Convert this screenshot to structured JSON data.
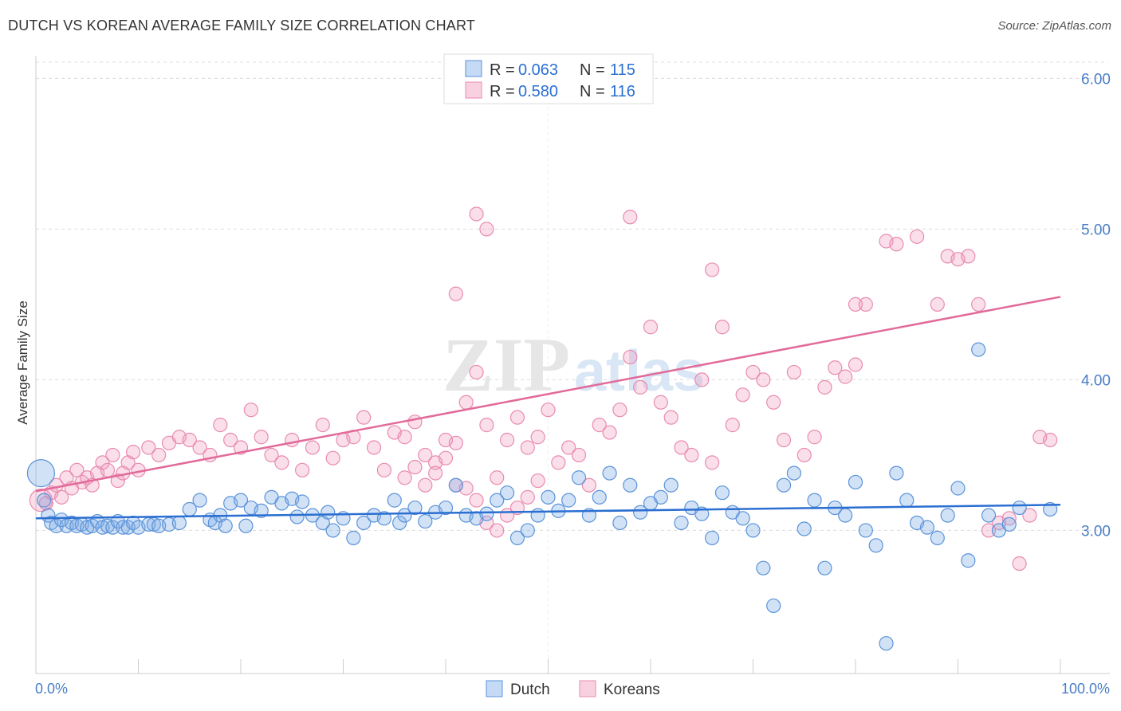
{
  "title": "DUTCH VS KOREAN AVERAGE FAMILY SIZE CORRELATION CHART",
  "source": "Source: ZipAtlas.com",
  "watermark": "ZIPatlas",
  "colors": {
    "dutch_fill": "rgba(126,172,230,0.35)",
    "dutch_stroke": "#5b93d9",
    "dutch_line": "#2a6fd1",
    "korean_fill": "rgba(240,150,185,0.3)",
    "korean_stroke": "#e98bb0",
    "korean_line": "#e26a9a",
    "tick_blue": "#4a7ec7"
  },
  "legend": {
    "dutch": {
      "r_label": "R =",
      "r_value": "0.063",
      "n_label": "N =",
      "n_value": "115"
    },
    "korean": {
      "r_label": "R =",
      "r_value": "0.580",
      "n_label": "N =",
      "n_value": "116"
    }
  },
  "chart_data": {
    "type": "scatter",
    "title": "DUTCH VS KOREAN AVERAGE FAMILY SIZE CORRELATION CHART",
    "xlabel": "",
    "ylabel": "Average Family Size",
    "xlim": [
      0,
      100
    ],
    "ylim": [
      2.05,
      6.15
    ],
    "x_tick_labels": [
      "0.0%",
      "100.0%"
    ],
    "y_ticks": [
      3.0,
      4.0,
      5.0,
      6.0
    ],
    "y_tick_labels": [
      "3.00",
      "4.00",
      "5.00",
      "6.00"
    ],
    "grid": true,
    "legend_position": "top-center",
    "series": [
      {
        "name": "Dutch",
        "trend": {
          "x": [
            0,
            100
          ],
          "y": [
            3.08,
            3.17
          ]
        },
        "points": [
          [
            0.5,
            3.38
          ],
          [
            0.8,
            3.2
          ],
          [
            1.2,
            3.1
          ],
          [
            1.5,
            3.05
          ],
          [
            2,
            3.03
          ],
          [
            2.5,
            3.07
          ],
          [
            3,
            3.03
          ],
          [
            3.5,
            3.05
          ],
          [
            4,
            3.03
          ],
          [
            4.5,
            3.04
          ],
          [
            5,
            3.02
          ],
          [
            5.5,
            3.03
          ],
          [
            6,
            3.06
          ],
          [
            6.5,
            3.02
          ],
          [
            7,
            3.03
          ],
          [
            7.5,
            3.02
          ],
          [
            8,
            3.06
          ],
          [
            8.5,
            3.02
          ],
          [
            9,
            3.02
          ],
          [
            9.5,
            3.05
          ],
          [
            10,
            3.02
          ],
          [
            11,
            3.04
          ],
          [
            11.5,
            3.04
          ],
          [
            12,
            3.03
          ],
          [
            13,
            3.04
          ],
          [
            14,
            3.05
          ],
          [
            15,
            3.14
          ],
          [
            16,
            3.2
          ],
          [
            17,
            3.07
          ],
          [
            17.5,
            3.05
          ],
          [
            18,
            3.1
          ],
          [
            18.5,
            3.03
          ],
          [
            19,
            3.18
          ],
          [
            20,
            3.2
          ],
          [
            20.5,
            3.03
          ],
          [
            21,
            3.15
          ],
          [
            22,
            3.13
          ],
          [
            23,
            3.22
          ],
          [
            24,
            3.18
          ],
          [
            25,
            3.21
          ],
          [
            25.5,
            3.09
          ],
          [
            26,
            3.19
          ],
          [
            27,
            3.1
          ],
          [
            28,
            3.05
          ],
          [
            28.5,
            3.12
          ],
          [
            29,
            3.0
          ],
          [
            30,
            3.08
          ],
          [
            31,
            2.95
          ],
          [
            32,
            3.05
          ],
          [
            33,
            3.1
          ],
          [
            34,
            3.08
          ],
          [
            35,
            3.2
          ],
          [
            35.5,
            3.05
          ],
          [
            36,
            3.1
          ],
          [
            37,
            3.15
          ],
          [
            38,
            3.06
          ],
          [
            39,
            3.12
          ],
          [
            40,
            3.15
          ],
          [
            41,
            3.3
          ],
          [
            42,
            3.1
          ],
          [
            43,
            3.08
          ],
          [
            44,
            3.11
          ],
          [
            45,
            3.2
          ],
          [
            46,
            3.25
          ],
          [
            47,
            2.95
          ],
          [
            48,
            3.0
          ],
          [
            49,
            3.1
          ],
          [
            50,
            3.22
          ],
          [
            51,
            3.13
          ],
          [
            52,
            3.2
          ],
          [
            53,
            3.35
          ],
          [
            54,
            3.1
          ],
          [
            55,
            3.22
          ],
          [
            56,
            3.38
          ],
          [
            57,
            3.05
          ],
          [
            58,
            3.3
          ],
          [
            59,
            3.12
          ],
          [
            60,
            3.18
          ],
          [
            61,
            3.22
          ],
          [
            62,
            3.3
          ],
          [
            63,
            3.05
          ],
          [
            64,
            3.15
          ],
          [
            65,
            3.11
          ],
          [
            66,
            2.95
          ],
          [
            67,
            3.25
          ],
          [
            68,
            3.12
          ],
          [
            69,
            3.08
          ],
          [
            70,
            3.0
          ],
          [
            71,
            2.75
          ],
          [
            72,
            2.5
          ],
          [
            73,
            3.3
          ],
          [
            74,
            3.38
          ],
          [
            75,
            3.01
          ],
          [
            76,
            3.2
          ],
          [
            77,
            2.75
          ],
          [
            78,
            3.15
          ],
          [
            79,
            3.1
          ],
          [
            80,
            3.32
          ],
          [
            81,
            3.0
          ],
          [
            82,
            2.9
          ],
          [
            83,
            2.25
          ],
          [
            84,
            3.38
          ],
          [
            85,
            3.2
          ],
          [
            86,
            3.05
          ],
          [
            87,
            3.02
          ],
          [
            88,
            2.95
          ],
          [
            89,
            3.1
          ],
          [
            90,
            3.28
          ],
          [
            91,
            2.8
          ],
          [
            92,
            4.2
          ],
          [
            93,
            3.1
          ],
          [
            94,
            3.0
          ],
          [
            95,
            3.04
          ],
          [
            96,
            3.15
          ],
          [
            99,
            3.14
          ]
        ]
      },
      {
        "name": "Koreans",
        "trend": {
          "x": [
            0,
            100
          ],
          "y": [
            3.26,
            4.55
          ]
        },
        "points": [
          [
            0.5,
            3.2
          ],
          [
            1,
            3.18
          ],
          [
            1.5,
            3.25
          ],
          [
            2,
            3.3
          ],
          [
            2.5,
            3.22
          ],
          [
            3,
            3.35
          ],
          [
            3.5,
            3.28
          ],
          [
            4,
            3.4
          ],
          [
            4.5,
            3.32
          ],
          [
            5,
            3.35
          ],
          [
            5.5,
            3.3
          ],
          [
            6,
            3.38
          ],
          [
            6.5,
            3.45
          ],
          [
            7,
            3.4
          ],
          [
            7.5,
            3.5
          ],
          [
            8,
            3.33
          ],
          [
            8.5,
            3.38
          ],
          [
            9,
            3.45
          ],
          [
            9.5,
            3.52
          ],
          [
            10,
            3.4
          ],
          [
            11,
            3.55
          ],
          [
            12,
            3.5
          ],
          [
            13,
            3.58
          ],
          [
            14,
            3.62
          ],
          [
            15,
            3.6
          ],
          [
            16,
            3.55
          ],
          [
            17,
            3.5
          ],
          [
            18,
            3.7
          ],
          [
            19,
            3.6
          ],
          [
            20,
            3.55
          ],
          [
            21,
            3.8
          ],
          [
            22,
            3.62
          ],
          [
            23,
            3.5
          ],
          [
            24,
            3.45
          ],
          [
            25,
            3.6
          ],
          [
            26,
            3.4
          ],
          [
            27,
            3.55
          ],
          [
            28,
            3.7
          ],
          [
            29,
            3.48
          ],
          [
            30,
            3.6
          ],
          [
            31,
            3.62
          ],
          [
            32,
            3.75
          ],
          [
            33,
            3.55
          ],
          [
            34,
            3.4
          ],
          [
            35,
            3.65
          ],
          [
            36,
            3.62
          ],
          [
            37,
            3.72
          ],
          [
            38,
            3.5
          ],
          [
            39,
            3.45
          ],
          [
            40,
            3.6
          ],
          [
            41,
            3.58
          ],
          [
            42,
            3.85
          ],
          [
            43,
            4.05
          ],
          [
            44,
            3.7
          ],
          [
            45,
            3.35
          ],
          [
            46,
            3.6
          ],
          [
            47,
            3.75
          ],
          [
            48,
            3.55
          ],
          [
            49,
            3.62
          ],
          [
            50,
            3.8
          ],
          [
            51,
            3.45
          ],
          [
            52,
            3.55
          ],
          [
            53,
            3.5
          ],
          [
            54,
            3.3
          ],
          [
            55,
            3.7
          ],
          [
            56,
            3.65
          ],
          [
            57,
            3.8
          ],
          [
            58,
            4.15
          ],
          [
            59,
            3.95
          ],
          [
            60,
            4.35
          ],
          [
            61,
            3.85
          ],
          [
            62,
            3.75
          ],
          [
            63,
            3.55
          ],
          [
            64,
            3.5
          ],
          [
            65,
            4.0
          ],
          [
            66,
            3.45
          ],
          [
            67,
            4.35
          ],
          [
            68,
            3.7
          ],
          [
            69,
            3.9
          ],
          [
            70,
            4.05
          ],
          [
            71,
            4.0
          ],
          [
            72,
            3.85
          ],
          [
            73,
            3.6
          ],
          [
            74,
            4.05
          ],
          [
            75,
            3.5
          ],
          [
            76,
            3.62
          ],
          [
            77,
            3.95
          ],
          [
            78,
            4.08
          ],
          [
            79,
            4.02
          ],
          [
            80,
            4.1
          ],
          [
            41,
            4.57
          ],
          [
            43,
            5.1
          ],
          [
            44,
            5.0
          ],
          [
            58,
            5.08
          ],
          [
            66,
            4.73
          ],
          [
            80,
            4.5
          ],
          [
            81,
            4.5
          ],
          [
            83,
            4.92
          ],
          [
            84,
            4.9
          ],
          [
            86,
            4.95
          ],
          [
            88,
            4.5
          ],
          [
            89,
            4.82
          ],
          [
            90,
            4.8
          ],
          [
            91,
            4.82
          ],
          [
            92,
            4.5
          ],
          [
            93,
            3.0
          ],
          [
            94,
            3.05
          ],
          [
            95,
            3.08
          ],
          [
            96,
            2.78
          ],
          [
            97,
            3.1
          ],
          [
            98,
            3.62
          ],
          [
            99,
            3.6
          ],
          [
            36,
            3.35
          ],
          [
            37,
            3.42
          ],
          [
            38,
            3.3
          ],
          [
            39,
            3.38
          ],
          [
            40,
            3.48
          ],
          [
            41,
            3.3
          ],
          [
            42,
            3.28
          ],
          [
            43,
            3.2
          ],
          [
            44,
            3.05
          ],
          [
            45,
            3.0
          ],
          [
            46,
            3.1
          ],
          [
            47,
            3.15
          ],
          [
            48,
            3.22
          ],
          [
            49,
            3.33
          ]
        ]
      }
    ]
  }
}
